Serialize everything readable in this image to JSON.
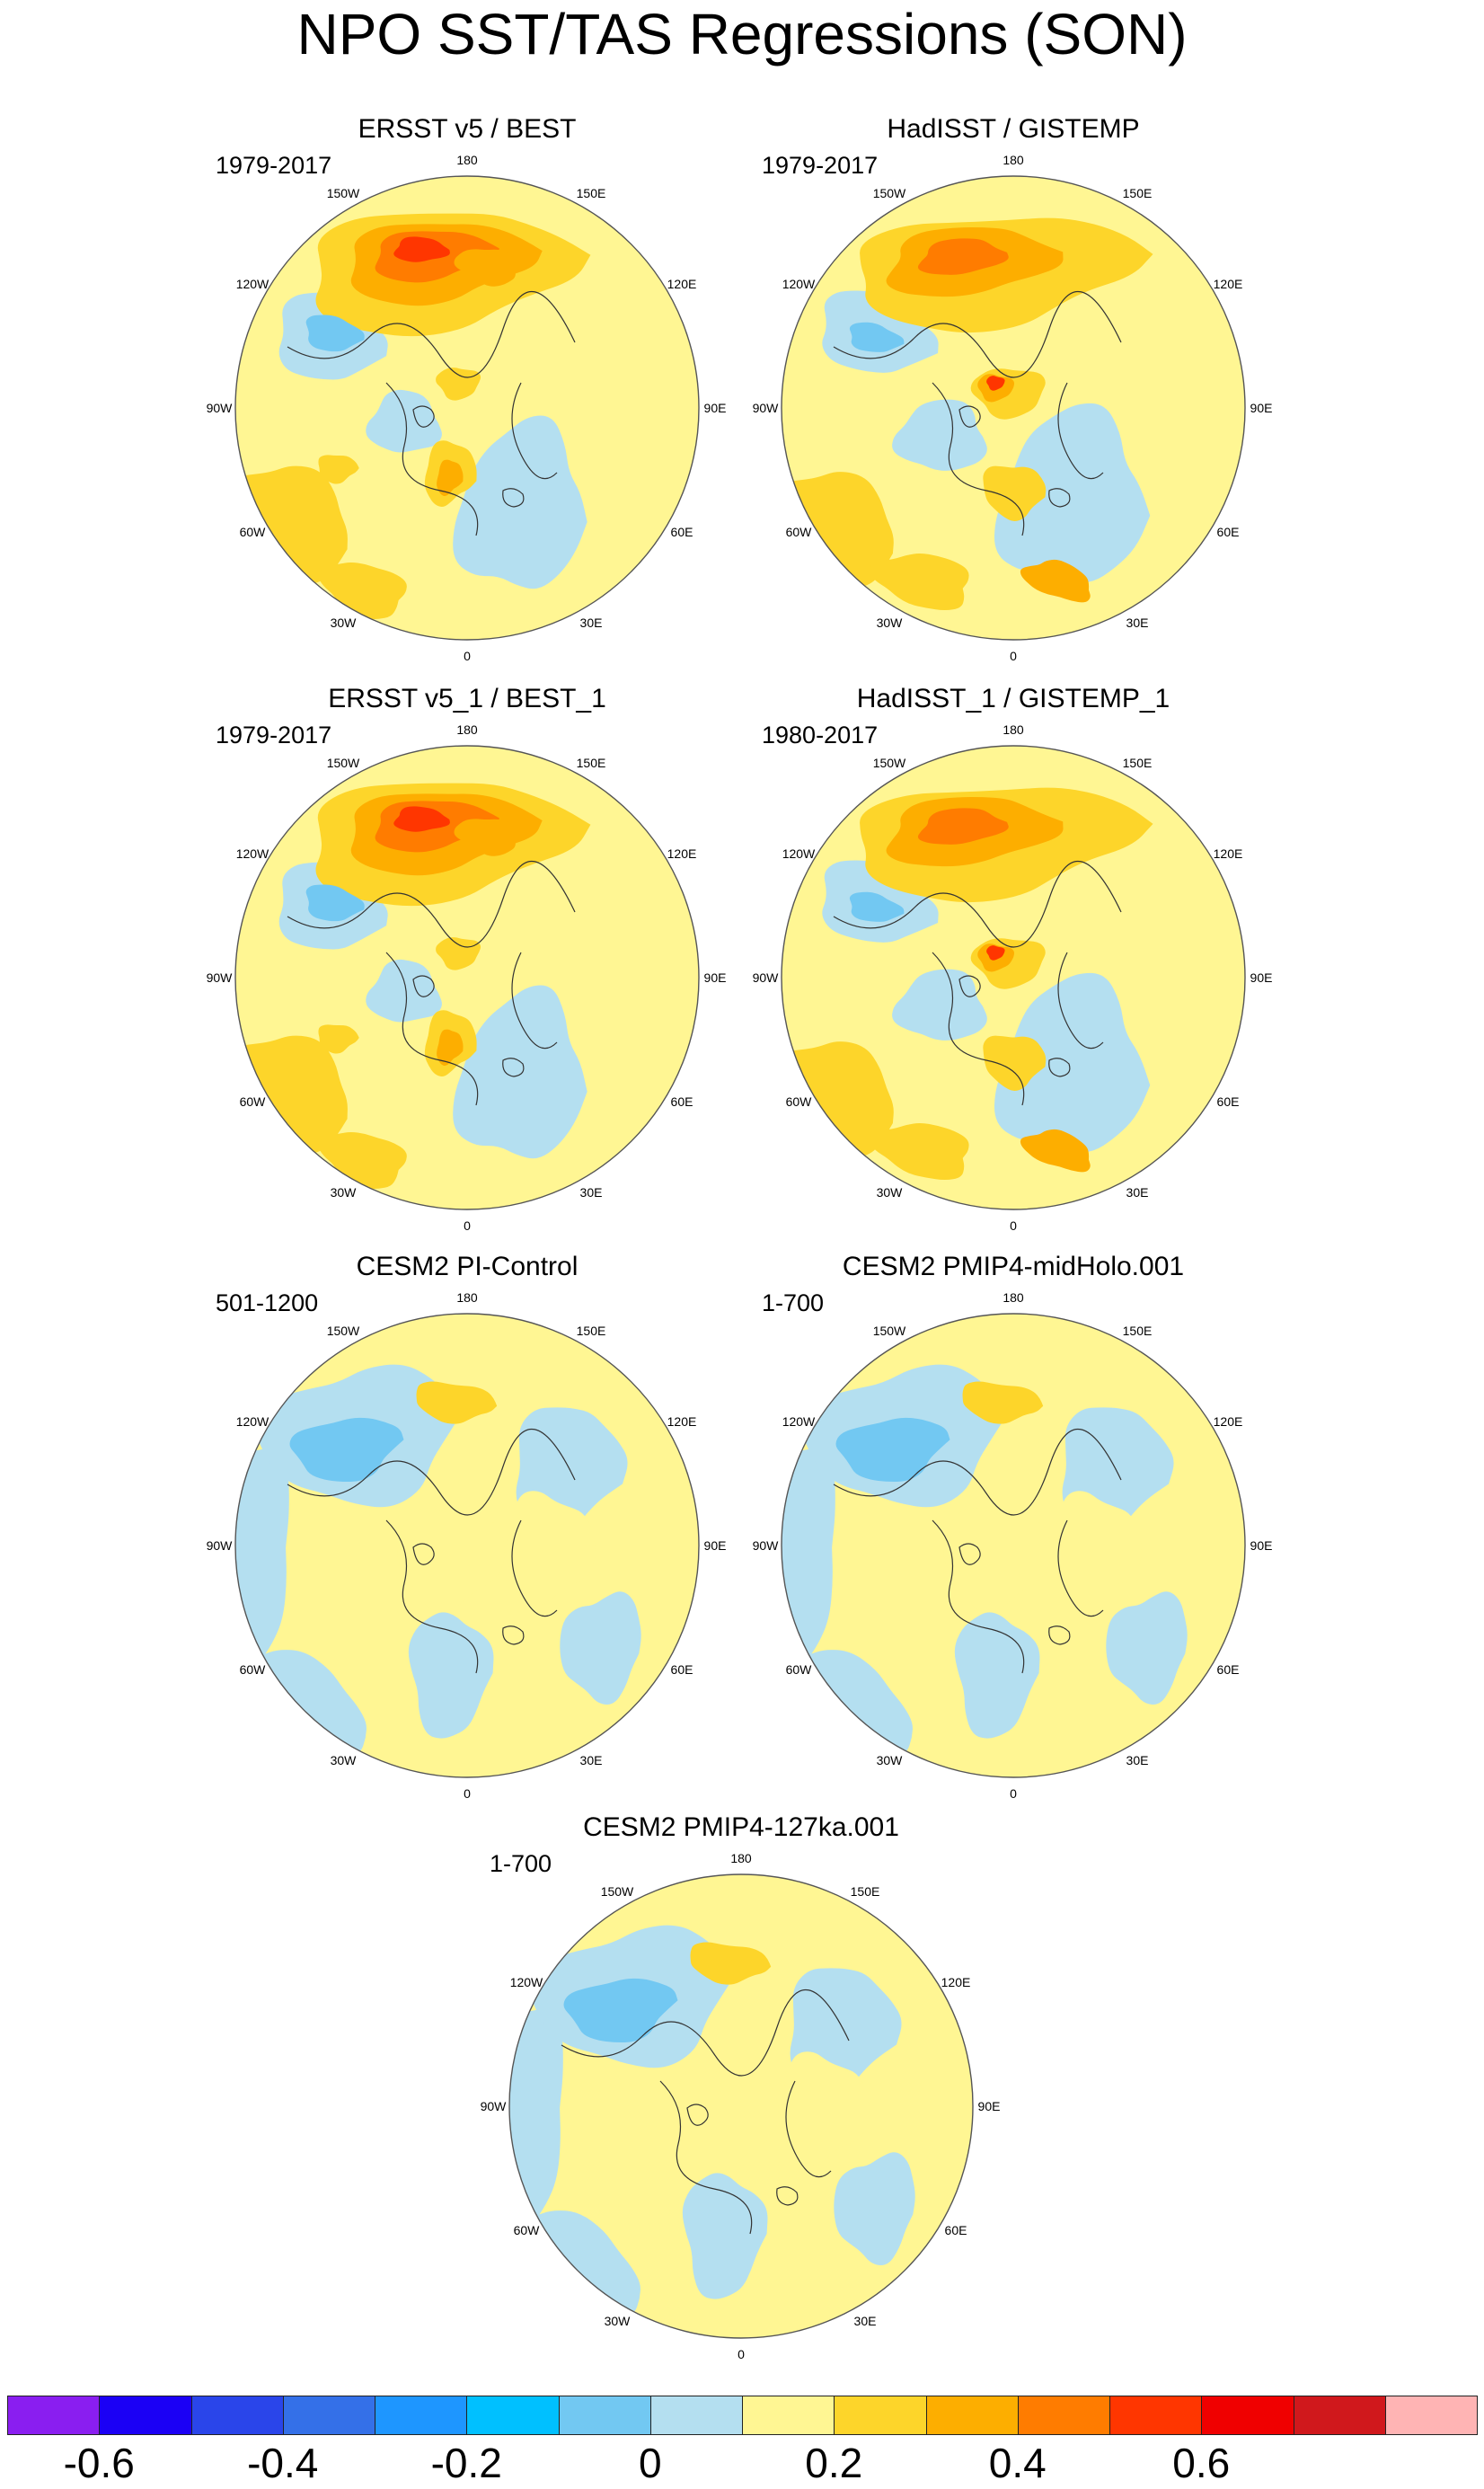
{
  "title": "NPO SST/TAS Regressions (SON)",
  "lon_labels": [
    "180",
    "150E",
    "120E",
    "90E",
    "60E",
    "30E",
    "0",
    "30W",
    "60W",
    "90W",
    "120W",
    "150W"
  ],
  "panels": [
    {
      "title": "ERSST v5 / BEST",
      "period": "1979-2017"
    },
    {
      "title": "HadISST / GISTEMP",
      "period": "1979-2017"
    },
    {
      "title": "ERSST v5_1 / BEST_1",
      "period": "1979-2017"
    },
    {
      "title": "HadISST_1 / GISTEMP_1",
      "period": "1980-2017"
    },
    {
      "title": "CESM2 PI-Control",
      "period": "501-1200"
    },
    {
      "title": "CESM2 PMIP4-midHolo.001",
      "period": "1-700"
    },
    {
      "title": "CESM2 PMIP4-127ka.001",
      "period": "1-700"
    }
  ],
  "colorbar": {
    "colors": [
      "#8a1ef0",
      "#1b00f5",
      "#2a45ea",
      "#3470e8",
      "#1e96ff",
      "#00c0ff",
      "#72c8f2",
      "#b4dff0",
      "#fff693",
      "#fdd52a",
      "#fdae00",
      "#ff7c00",
      "#ff3600",
      "#f00000",
      "#d0181c",
      "#ffb4b4"
    ],
    "labels": [
      {
        "text": "-0.6",
        "value": -0.6
      },
      {
        "text": "-0.4",
        "value": -0.4
      },
      {
        "text": "-0.2",
        "value": -0.2
      },
      {
        "text": "0",
        "value": 0
      },
      {
        "text": "0.2",
        "value": 0.2
      },
      {
        "text": "0.4",
        "value": 0.4
      },
      {
        "text": "0.6",
        "value": 0.6
      }
    ],
    "min": -0.7,
    "max": 0.9,
    "step": 0.1
  }
}
